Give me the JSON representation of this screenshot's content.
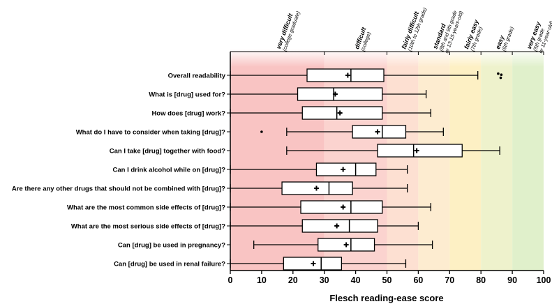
{
  "chart_data": {
    "type": "boxplot",
    "title": "",
    "xlabel": "Flesch reading-ease score",
    "ylabel": "",
    "xlim": [
      0,
      100
    ],
    "xticks": [
      "0",
      "10",
      "20",
      "30",
      "40",
      "50",
      "60",
      "70",
      "80",
      "90",
      "100"
    ],
    "bands": [
      {
        "from": 0,
        "to": 30,
        "label": "very difficult",
        "sub": [
          "(college graduate)"
        ],
        "color": "#f9c4c3"
      },
      {
        "from": 30,
        "to": 50,
        "label": "difficult",
        "sub": [
          "(college)"
        ],
        "color": "#fbd3cf"
      },
      {
        "from": 50,
        "to": 60,
        "label": "fairly difficult",
        "sub": [
          "(10th to 12th grade)"
        ],
        "color": "#fde0d2"
      },
      {
        "from": 60,
        "to": 70,
        "label": "standard",
        "sub": [
          "(8th and 9th grade",
          "or 13-15-years-old)"
        ],
        "color": "#fdecd0"
      },
      {
        "from": 70,
        "to": 80,
        "label": "fairly easy",
        "sub": [
          "(7th grade)"
        ],
        "color": "#fdf0c4"
      },
      {
        "from": 80,
        "to": 90,
        "label": "easy",
        "sub": [
          "(6th grade)"
        ],
        "color": "#eef2cc"
      },
      {
        "from": 90,
        "to": 100,
        "label": "very easy",
        "sub": [
          "(5th grade",
          "or 11-year-old)"
        ],
        "color": "#e0f0cb"
      }
    ],
    "categories": [
      "Overall readability",
      "What is [drug] used for?",
      "How does [drug] work?",
      "What do I have to consider when taking [drug]?",
      "Can I take [drug] together with food?",
      "Can I drink alcohol while on [drug]?",
      "Are there any other drugs that should not be combined with [drug]?",
      "What are the most common side effects of [drug]?",
      "What are the most serious side effects of [drug]?",
      "Can [drug] be used in pregnancy?",
      "Can [drug] be used in renal failure?"
    ],
    "series": [
      {
        "min": 0,
        "q1": 24.5,
        "median": 38.5,
        "q3": 49,
        "max": 79,
        "mean": 37.5,
        "outliers": [
          [
            85.5,
            0.12
          ],
          [
            86.5,
            0.04
          ],
          [
            86.3,
            -0.18
          ]
        ]
      },
      {
        "min": 0,
        "q1": 21.5,
        "median": 33,
        "q3": 48.5,
        "max": 62.5,
        "mean": 33.5,
        "outliers": []
      },
      {
        "min": 0,
        "q1": 23,
        "median": 34,
        "q3": 48.5,
        "max": 64,
        "mean": 35,
        "outliers": []
      },
      {
        "min": 18,
        "q1": 39,
        "median": 48.5,
        "q3": 56,
        "max": 68,
        "mean": 47,
        "outliers": [
          [
            10,
            0
          ]
        ]
      },
      {
        "min": 18,
        "q1": 47,
        "median": 58.5,
        "q3": 74,
        "max": 86,
        "mean": 59.5,
        "outliers": []
      },
      {
        "min": 0,
        "q1": 27.5,
        "median": 40,
        "q3": 46.5,
        "max": 56.5,
        "mean": 36,
        "outliers": []
      },
      {
        "min": 0,
        "q1": 16.5,
        "median": 31.5,
        "q3": 39,
        "max": 56.5,
        "mean": 27.5,
        "outliers": []
      },
      {
        "min": 0,
        "q1": 22.5,
        "median": 38.5,
        "q3": 48.5,
        "max": 64,
        "mean": 36,
        "outliers": []
      },
      {
        "min": 0,
        "q1": 23,
        "median": 38,
        "q3": 47,
        "max": 60,
        "mean": 34,
        "outliers": []
      },
      {
        "min": 7.5,
        "q1": 28,
        "median": 38.5,
        "q3": 46,
        "max": 64.5,
        "mean": 37,
        "outliers": []
      },
      {
        "min": 0,
        "q1": 17,
        "median": 29,
        "q3": 35.5,
        "max": 56,
        "mean": 26.5,
        "outliers": []
      }
    ],
    "grid": false,
    "legend": "none"
  }
}
